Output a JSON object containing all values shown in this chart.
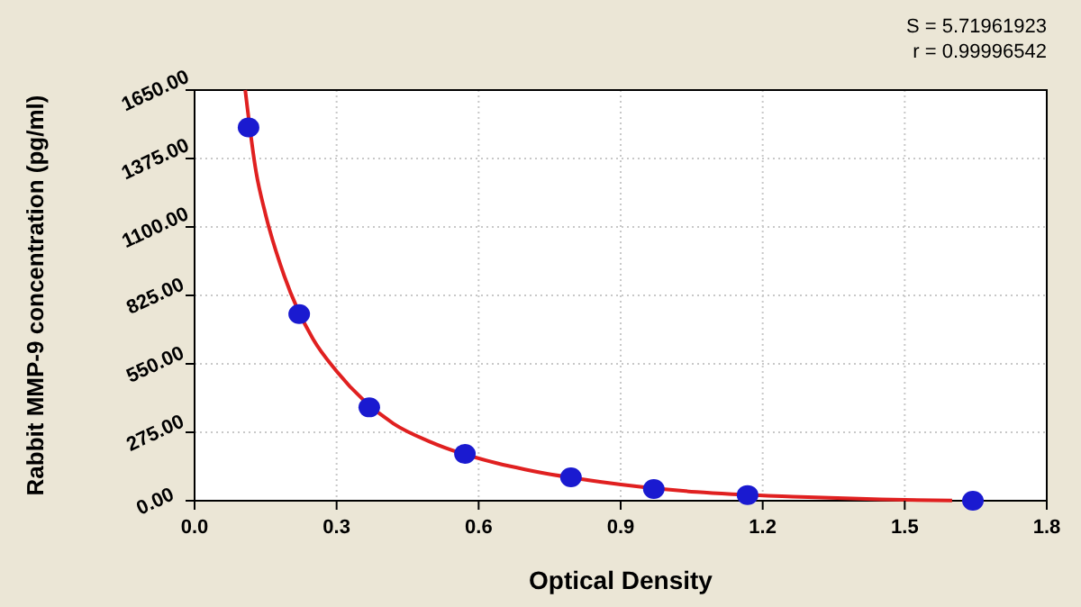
{
  "chart_data": {
    "type": "scatter",
    "xlabel": "Optical Density",
    "ylabel": "Rabbit MMP-9 concentration (pg/ml)",
    "annotations": [
      "S = 5.71961923",
      "r = 0.99996542"
    ],
    "xlim": [
      0,
      1.8
    ],
    "xticks": [
      {
        "value": 0,
        "label": "0.0"
      },
      0.3,
      0.6,
      0.9,
      1.2,
      1.5,
      1.8
    ],
    "ylim": [
      0,
      1650
    ],
    "yticks": [
      {
        "value": 0,
        "label": "0.00"
      },
      {
        "value": 275,
        "label": "275.00"
      },
      {
        "value": 550,
        "label": "550.00"
      },
      {
        "value": 825,
        "label": "825.00"
      },
      {
        "value": 1100,
        "label": "1100.00"
      },
      {
        "value": 1375,
        "label": "1375.00"
      },
      {
        "value": 1650,
        "label": "1650.00"
      }
    ],
    "grid": true,
    "series": [
      {
        "type": "line",
        "color": "#e02020",
        "marker": "none",
        "line_style": "solid",
        "x": [
          0.107,
          0.13,
          0.15,
          0.19,
          0.25,
          0.3,
          0.42,
          0.5,
          0.64,
          0.7,
          0.86,
          1.06,
          1.28,
          1.45,
          1.6
        ],
        "values": [
          1650,
          1320,
          1150,
          900,
          650,
          520,
          310,
          235,
          150,
          125,
          75,
          35,
          15,
          5,
          1
        ]
      },
      {
        "color": "#1a1ad0",
        "marker": "circle",
        "x": [
          0.114,
          0.221,
          0.369,
          0.571,
          0.795,
          0.97,
          1.168,
          1.644
        ],
        "values": [
          1500,
          750,
          375,
          188,
          94,
          47,
          23,
          0
        ]
      }
    ]
  }
}
